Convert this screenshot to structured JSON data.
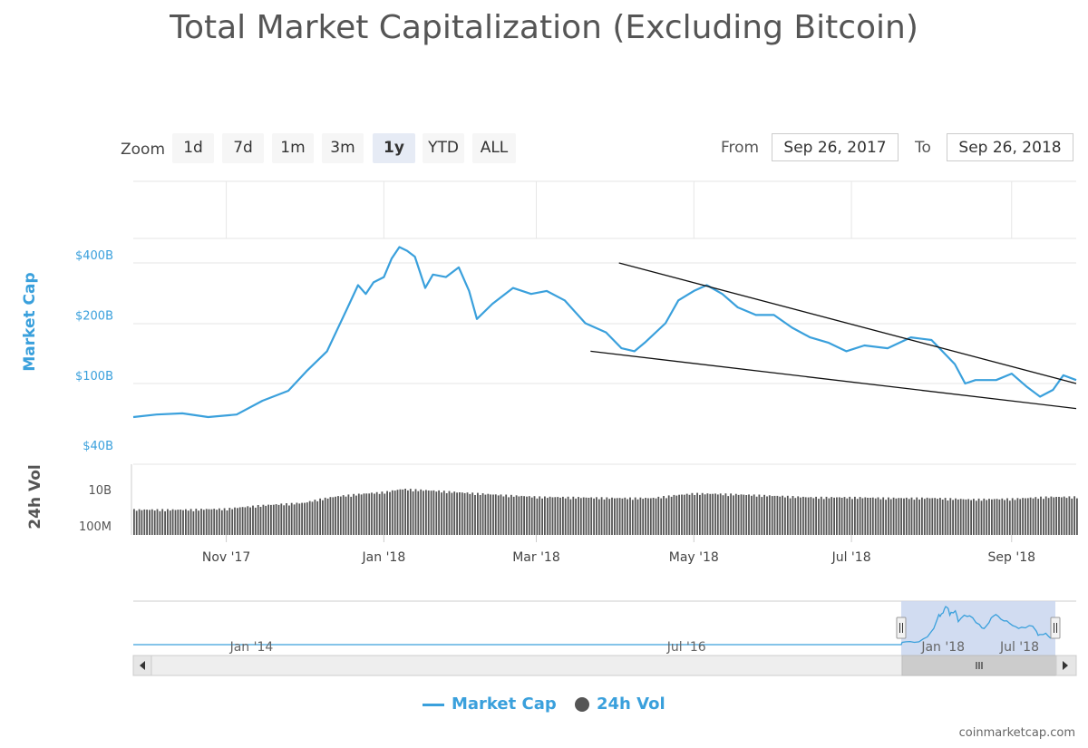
{
  "chart_data": {
    "type": "line",
    "title": "Total Market Capitalization (Excluding Bitcoin)",
    "series": [
      {
        "name": "Market Cap",
        "color": "#3aa0dc",
        "points": [
          [
            "2017-09-26",
            68
          ],
          [
            "2017-10-05",
            70
          ],
          [
            "2017-10-15",
            71
          ],
          [
            "2017-10-25",
            68
          ],
          [
            "2017-11-05",
            70
          ],
          [
            "2017-11-15",
            82
          ],
          [
            "2017-11-25",
            92
          ],
          [
            "2017-12-02",
            115
          ],
          [
            "2017-12-10",
            145
          ],
          [
            "2017-12-18",
            240
          ],
          [
            "2017-12-22",
            310
          ],
          [
            "2017-12-25",
            280
          ],
          [
            "2017-12-28",
            320
          ],
          [
            "2018-01-01",
            340
          ],
          [
            "2018-01-04",
            420
          ],
          [
            "2018-01-07",
            480
          ],
          [
            "2018-01-10",
            460
          ],
          [
            "2018-01-13",
            430
          ],
          [
            "2018-01-17",
            300
          ],
          [
            "2018-01-20",
            350
          ],
          [
            "2018-01-25",
            340
          ],
          [
            "2018-01-30",
            380
          ],
          [
            "2018-02-03",
            290
          ],
          [
            "2018-02-06",
            210
          ],
          [
            "2018-02-12",
            250
          ],
          [
            "2018-02-20",
            300
          ],
          [
            "2018-02-27",
            280
          ],
          [
            "2018-03-05",
            290
          ],
          [
            "2018-03-12",
            260
          ],
          [
            "2018-03-20",
            200
          ],
          [
            "2018-03-28",
            180
          ],
          [
            "2018-04-03",
            150
          ],
          [
            "2018-04-08",
            145
          ],
          [
            "2018-04-12",
            160
          ],
          [
            "2018-04-20",
            200
          ],
          [
            "2018-04-25",
            260
          ],
          [
            "2018-05-01",
            290
          ],
          [
            "2018-05-06",
            310
          ],
          [
            "2018-05-12",
            280
          ],
          [
            "2018-05-18",
            240
          ],
          [
            "2018-05-25",
            220
          ],
          [
            "2018-06-01",
            220
          ],
          [
            "2018-06-08",
            190
          ],
          [
            "2018-06-15",
            170
          ],
          [
            "2018-06-22",
            160
          ],
          [
            "2018-06-29",
            145
          ],
          [
            "2018-07-06",
            155
          ],
          [
            "2018-07-15",
            150
          ],
          [
            "2018-07-24",
            170
          ],
          [
            "2018-08-01",
            165
          ],
          [
            "2018-08-10",
            125
          ],
          [
            "2018-08-14",
            100
          ],
          [
            "2018-08-18",
            104
          ],
          [
            "2018-08-26",
            104
          ],
          [
            "2018-09-01",
            112
          ],
          [
            "2018-09-07",
            96
          ],
          [
            "2018-09-12",
            86
          ],
          [
            "2018-09-17",
            93
          ],
          [
            "2018-09-21",
            110
          ],
          [
            "2018-09-26",
            104
          ]
        ]
      },
      {
        "name": "24h Vol",
        "color": "#555555",
        "type": "column",
        "points": [
          [
            "2017-10-01",
            0.9
          ],
          [
            "2017-10-15",
            0.9
          ],
          [
            "2017-11-01",
            1.0
          ],
          [
            "2017-11-15",
            1.5
          ],
          [
            "2017-12-01",
            2.0
          ],
          [
            "2017-12-15",
            4.5
          ],
          [
            "2018-01-01",
            7.0
          ],
          [
            "2018-01-08",
            10.0
          ],
          [
            "2018-01-15",
            9.0
          ],
          [
            "2018-02-01",
            6.5
          ],
          [
            "2018-02-15",
            5.0
          ],
          [
            "2018-03-01",
            4.0
          ],
          [
            "2018-03-15",
            3.8
          ],
          [
            "2018-04-01",
            3.5
          ],
          [
            "2018-04-15",
            3.5
          ],
          [
            "2018-05-01",
            6.0
          ],
          [
            "2018-05-15",
            5.5
          ],
          [
            "2018-06-01",
            4.5
          ],
          [
            "2018-06-15",
            3.8
          ],
          [
            "2018-07-01",
            3.8
          ],
          [
            "2018-07-15",
            3.5
          ],
          [
            "2018-08-01",
            3.5
          ],
          [
            "2018-08-15",
            3.0
          ],
          [
            "2018-09-01",
            3.2
          ],
          [
            "2018-09-15",
            4.0
          ],
          [
            "2018-09-26",
            4.0
          ]
        ]
      }
    ],
    "trendlines": [
      {
        "from": [
          "2018-04-02",
          400
        ],
        "to": [
          "2018-09-26",
          100
        ]
      },
      {
        "from": [
          "2018-03-22",
          145
        ],
        "to": [
          "2018-09-26",
          75
        ]
      }
    ],
    "yaxis_market_cap": {
      "label": "Market Cap",
      "scale": "log",
      "ticks": [
        "$400B",
        "$200B",
        "$100B",
        "$40B"
      ],
      "tick_values": [
        400,
        200,
        100,
        40
      ]
    },
    "yaxis_volume": {
      "label": "24h Vol",
      "scale": "log",
      "ticks": [
        "10B",
        "100M"
      ],
      "tick_values": [
        10,
        0.1
      ]
    },
    "xaxis": {
      "range": [
        "2017-09-26",
        "2018-09-26"
      ],
      "ticks": [
        {
          "label": "Nov '17",
          "date": "2017-11-01"
        },
        {
          "label": "Jan '18",
          "date": "2018-01-01"
        },
        {
          "label": "Mar '18",
          "date": "2018-03-01"
        },
        {
          "label": "May '18",
          "date": "2018-05-01"
        },
        {
          "label": "Jul '18",
          "date": "2018-07-01"
        },
        {
          "label": "Sep '18",
          "date": "2018-09-01"
        }
      ]
    },
    "navigator": {
      "range": [
        "2013-04-28",
        "2018-09-26"
      ],
      "selected": [
        "2017-09-26",
        "2018-09-26"
      ],
      "ticks": [
        {
          "label": "Jan '14",
          "date": "2014-01-01"
        },
        {
          "label": "Jul '16",
          "date": "2016-07-01"
        },
        {
          "label": "Jan '18",
          "date": "2018-01-01"
        },
        {
          "label": "Jul '18",
          "date": "2018-07-01"
        }
      ]
    },
    "legend": {
      "placement": "bottom"
    },
    "grid": true
  },
  "zoom": {
    "label": "Zoom",
    "buttons": [
      "1d",
      "7d",
      "1m",
      "3m",
      "1y",
      "YTD",
      "ALL"
    ],
    "active": "1y"
  },
  "range": {
    "from_label": "From",
    "from_value": "Sep 26, 2017",
    "to_label": "To",
    "to_value": "Sep 26, 2018"
  },
  "credit": "coinmarketcap.com",
  "icons": {
    "nav_left": "arrow-left-icon",
    "nav_right": "arrow-right-icon",
    "scroll_grip": "grip-icon",
    "handle": "handle-icon"
  }
}
